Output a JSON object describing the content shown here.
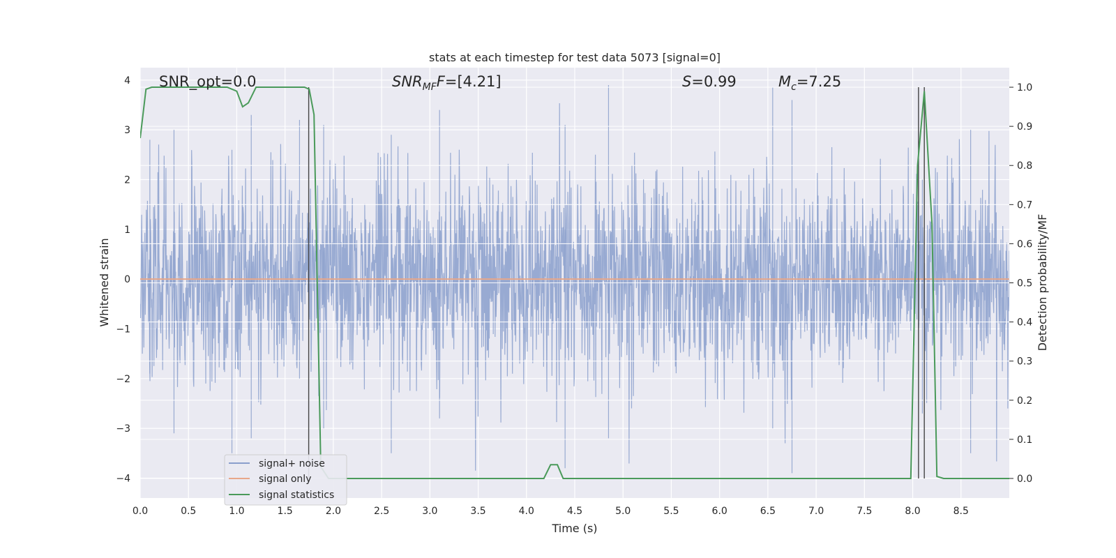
{
  "chart_data": {
    "type": "line",
    "title": "stats at each timestep for test data 5073 [signal=0]",
    "xlabel": "Time (s)",
    "ylabel_left": "Whitened strain",
    "ylabel_right": "Detection probability/MF",
    "xlim": [
      0.0,
      9.0
    ],
    "ylim_left": [
      -4.4,
      4.25
    ],
    "ylim_right": [
      -0.05,
      1.05
    ],
    "xticks": [
      "0.0",
      "0.5",
      "1.0",
      "1.5",
      "2.0",
      "2.5",
      "3.0",
      "3.5",
      "4.0",
      "4.5",
      "5.0",
      "5.5",
      "6.0",
      "6.5",
      "7.0",
      "7.5",
      "8.0",
      "8.5"
    ],
    "yticks_left": [
      "4",
      "3",
      "2",
      "1",
      "0",
      "−1",
      "−2",
      "−3",
      "−4"
    ],
    "yticks_right": [
      "1.0",
      "0.9",
      "0.8",
      "0.7",
      "0.6",
      "0.5",
      "0.4",
      "0.3",
      "0.2",
      "0.1",
      "0.0"
    ],
    "grid": true,
    "legend_position": "lower-left",
    "annotations": {
      "snr_opt": "SNR_opt=0.0",
      "snr_mf_pre": "SNR",
      "snr_mf_sub": "MF",
      "snr_mf_post": "=[4.21]",
      "s_pre": "S",
      "s_post": "=0.99",
      "mc_pre": "M",
      "mc_sub": "c",
      "mc_post": "=7.25"
    },
    "series": [
      {
        "name": "signal+ noise",
        "axis": "left",
        "color": "#8a9fcc",
        "description": "whitened noise, approx Gaussian, sigma ~1, peaks ~±3.9",
        "envelope_peaks": [
          {
            "x": 0.1,
            "hi": 2.8,
            "lo": -1.9
          },
          {
            "x": 0.35,
            "hi": 3.0,
            "lo": -3.1
          },
          {
            "x": 0.95,
            "hi": 2.6,
            "lo": -3.5
          },
          {
            "x": 1.15,
            "hi": 3.3,
            "lo": -3.2
          },
          {
            "x": 1.65,
            "hi": 3.2,
            "lo": -2.0
          },
          {
            "x": 1.9,
            "hi": 3.1,
            "lo": -3.0
          },
          {
            "x": 2.6,
            "hi": 2.9,
            "lo": -3.5
          },
          {
            "x": 3.1,
            "hi": 3.4,
            "lo": -2.8
          },
          {
            "x": 4.4,
            "hi": 3.1,
            "lo": -3.8
          },
          {
            "x": 4.85,
            "hi": 3.9,
            "lo": -3.2
          },
          {
            "x": 6.55,
            "hi": 3.85,
            "lo": -3.0
          },
          {
            "x": 6.75,
            "hi": 3.6,
            "lo": -3.9
          },
          {
            "x": 8.1,
            "hi": 2.0,
            "lo": -2.7
          },
          {
            "x": 8.6,
            "hi": 3.0,
            "lo": -3.5
          }
        ]
      },
      {
        "name": "signal only",
        "axis": "left",
        "color": "#e8a78a",
        "x": [
          0.0,
          9.0
        ],
        "y": [
          0.0,
          0.0
        ]
      },
      {
        "name": "signal statistics",
        "axis": "right",
        "color": "#4a9a5a",
        "x": [
          0.0,
          0.06,
          0.12,
          0.5,
          0.9,
          1.0,
          1.06,
          1.12,
          1.2,
          1.7,
          1.75,
          1.8,
          1.87,
          1.95,
          2.0,
          3.5,
          4.18,
          4.25,
          4.32,
          4.38,
          6.0,
          7.98,
          8.05,
          8.12,
          8.2,
          8.25,
          8.32,
          8.45,
          8.6,
          9.0
        ],
        "y": [
          0.87,
          0.995,
          1.0,
          1.0,
          1.0,
          0.99,
          0.95,
          0.96,
          1.0,
          1.0,
          0.995,
          0.93,
          0.03,
          0.0,
          0.0,
          0.0,
          0.0,
          0.035,
          0.035,
          0.0,
          0.0,
          0.0,
          0.8,
          0.99,
          0.65,
          0.005,
          0.0,
          0.0,
          0.0,
          0.0
        ]
      }
    ],
    "vlines": [
      {
        "x": 1.745,
        "ymin_right": 0.0,
        "ymax_right": 1.0,
        "color": "#444444"
      },
      {
        "x": 8.06,
        "ymin_right": 0.0,
        "ymax_right": 1.0,
        "color": "#444444"
      },
      {
        "x": 8.12,
        "ymin_right": 0.0,
        "ymax_right": 1.0,
        "color": "#444444"
      }
    ]
  }
}
